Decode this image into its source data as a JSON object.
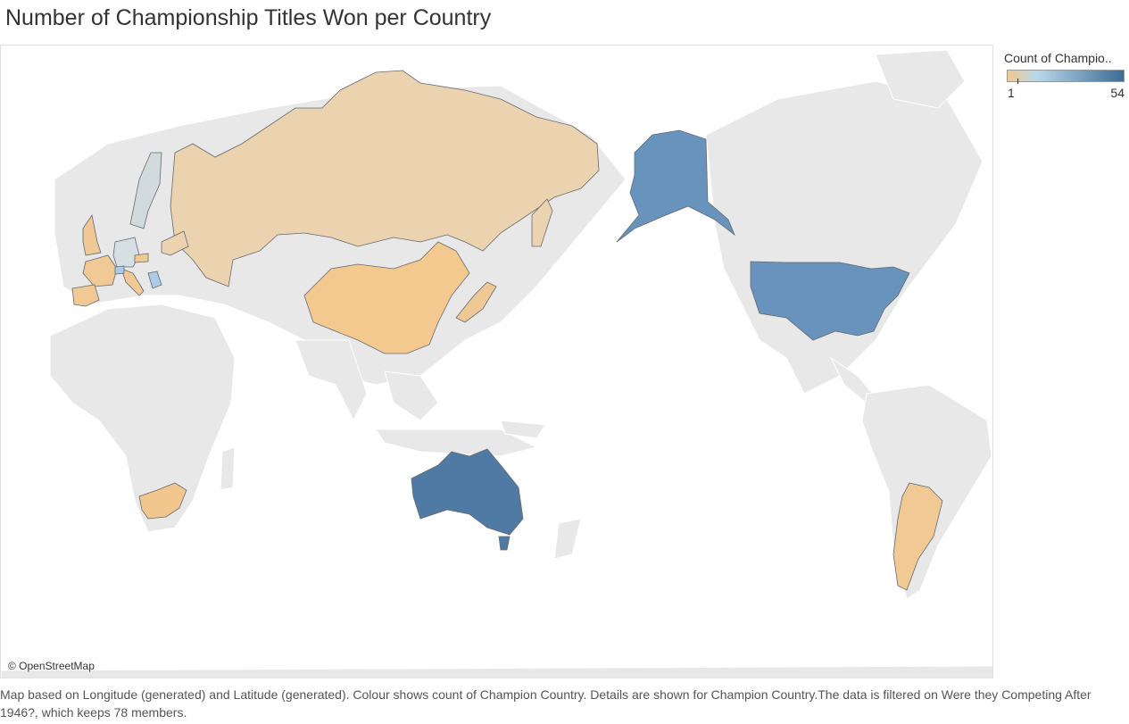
{
  "title": "Number of Championship Titles Won per Country",
  "legend": {
    "title": "Count of Champio..",
    "min": "1",
    "max": "54",
    "color_low": "#f2c78d",
    "color_mid": "#b9d8ea",
    "color_high": "#3b6b96"
  },
  "map": {
    "attribution": "© OpenStreetMap",
    "base_land_color": "#e8e8e8",
    "ocean_color": "#ffffff",
    "countries": [
      {
        "name": "Russia",
        "color": "#ebd3b0"
      },
      {
        "name": "China",
        "color": "#f3c98f"
      },
      {
        "name": "Japan",
        "color": "#f0c896"
      },
      {
        "name": "United States",
        "color": "#6893bd"
      },
      {
        "name": "Australia",
        "color": "#4f7aa3"
      },
      {
        "name": "Argentina",
        "color": "#f1c995"
      },
      {
        "name": "South Africa",
        "color": "#f2c68c"
      },
      {
        "name": "Sweden",
        "color": "#d1dadc"
      },
      {
        "name": "Germany",
        "color": "#d6dfe3"
      },
      {
        "name": "United Kingdom",
        "color": "#f0c895"
      },
      {
        "name": "France",
        "color": "#f1c995"
      },
      {
        "name": "Spain",
        "color": "#f1c995"
      },
      {
        "name": "Italy",
        "color": "#f1c995"
      },
      {
        "name": "Serbia",
        "color": "#aacce8"
      },
      {
        "name": "Switzerland",
        "color": "#a9cbe6"
      },
      {
        "name": "Czechia",
        "color": "#f1c995"
      },
      {
        "name": "Ukraine",
        "color": "#ebd3b0"
      }
    ]
  },
  "caption": "Map based on Longitude (generated) and Latitude (generated). Colour shows count of Champion Country. Details are shown for Champion Country.The data is filtered on Were they Competing After 1946?, which keeps 78 members."
}
